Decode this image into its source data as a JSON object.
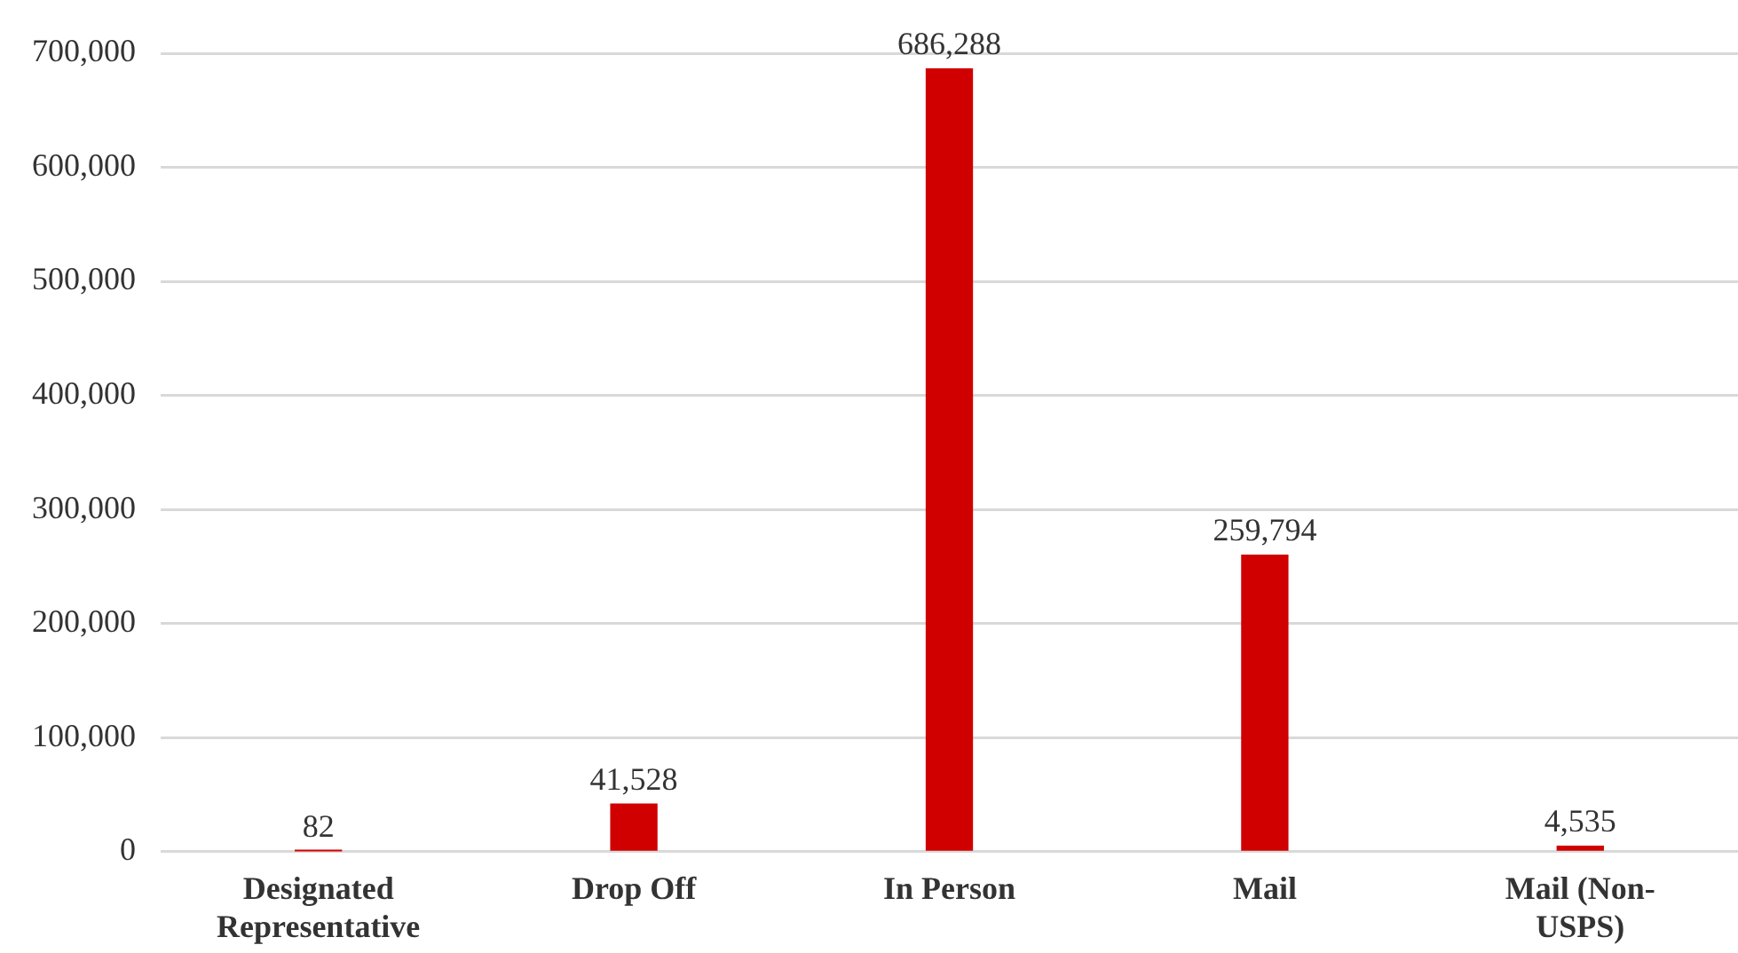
{
  "chart_data": {
    "type": "bar",
    "categories": [
      "Designated Representative",
      "Drop Off",
      "In Person",
      "Mail",
      "Mail (Non-USPS)"
    ],
    "values": [
      82,
      41528,
      686288,
      259794,
      4535
    ],
    "value_labels": [
      "82",
      "41,528",
      "686,288",
      "259,794",
      "4,535"
    ],
    "color": "#d00000",
    "ylim": [
      0,
      700000
    ],
    "yticks": [
      {
        "value": 0,
        "label": "0"
      },
      {
        "value": 100000,
        "label": "100,000"
      },
      {
        "value": 200000,
        "label": "200,000"
      },
      {
        "value": 300000,
        "label": "300,000"
      },
      {
        "value": 400000,
        "label": "400,000"
      },
      {
        "value": 500000,
        "label": "500,000"
      },
      {
        "value": 600000,
        "label": "600,000"
      },
      {
        "value": 700000,
        "label": "700,000"
      }
    ],
    "grid": "y"
  }
}
